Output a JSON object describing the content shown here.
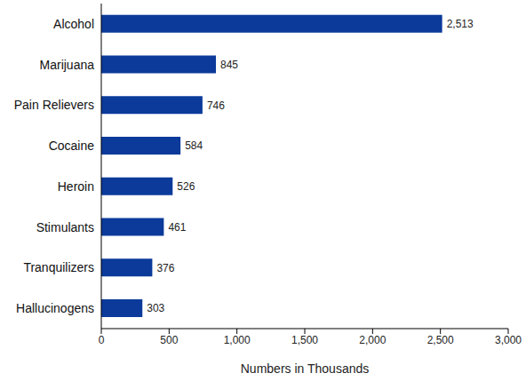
{
  "chart_data": {
    "type": "bar",
    "orientation": "horizontal",
    "categories": [
      "Alcohol",
      "Marijuana",
      "Pain Relievers",
      "Cocaine",
      "Heroin",
      "Stimulants",
      "Tranquilizers",
      "Hallucinogens"
    ],
    "values": [
      2513,
      845,
      746,
      584,
      526,
      461,
      376,
      303
    ],
    "value_labels": [
      "2,513",
      "845",
      "746",
      "584",
      "526",
      "461",
      "376",
      "303"
    ],
    "data_labels": true,
    "color": "#0b3a9a",
    "x_label": "Numbers in Thousands",
    "xlim": [
      0,
      3000
    ],
    "xticks": [
      0,
      500,
      {
        "value": 1000,
        "label": "1,000"
      },
      {
        "value": 1500,
        "label": "1,500"
      },
      {
        "value": 2000,
        "label": "2,000"
      },
      {
        "value": 2500,
        "label": "2,500"
      },
      {
        "value": 3000,
        "label": "3,000"
      }
    ],
    "grid": false
  }
}
